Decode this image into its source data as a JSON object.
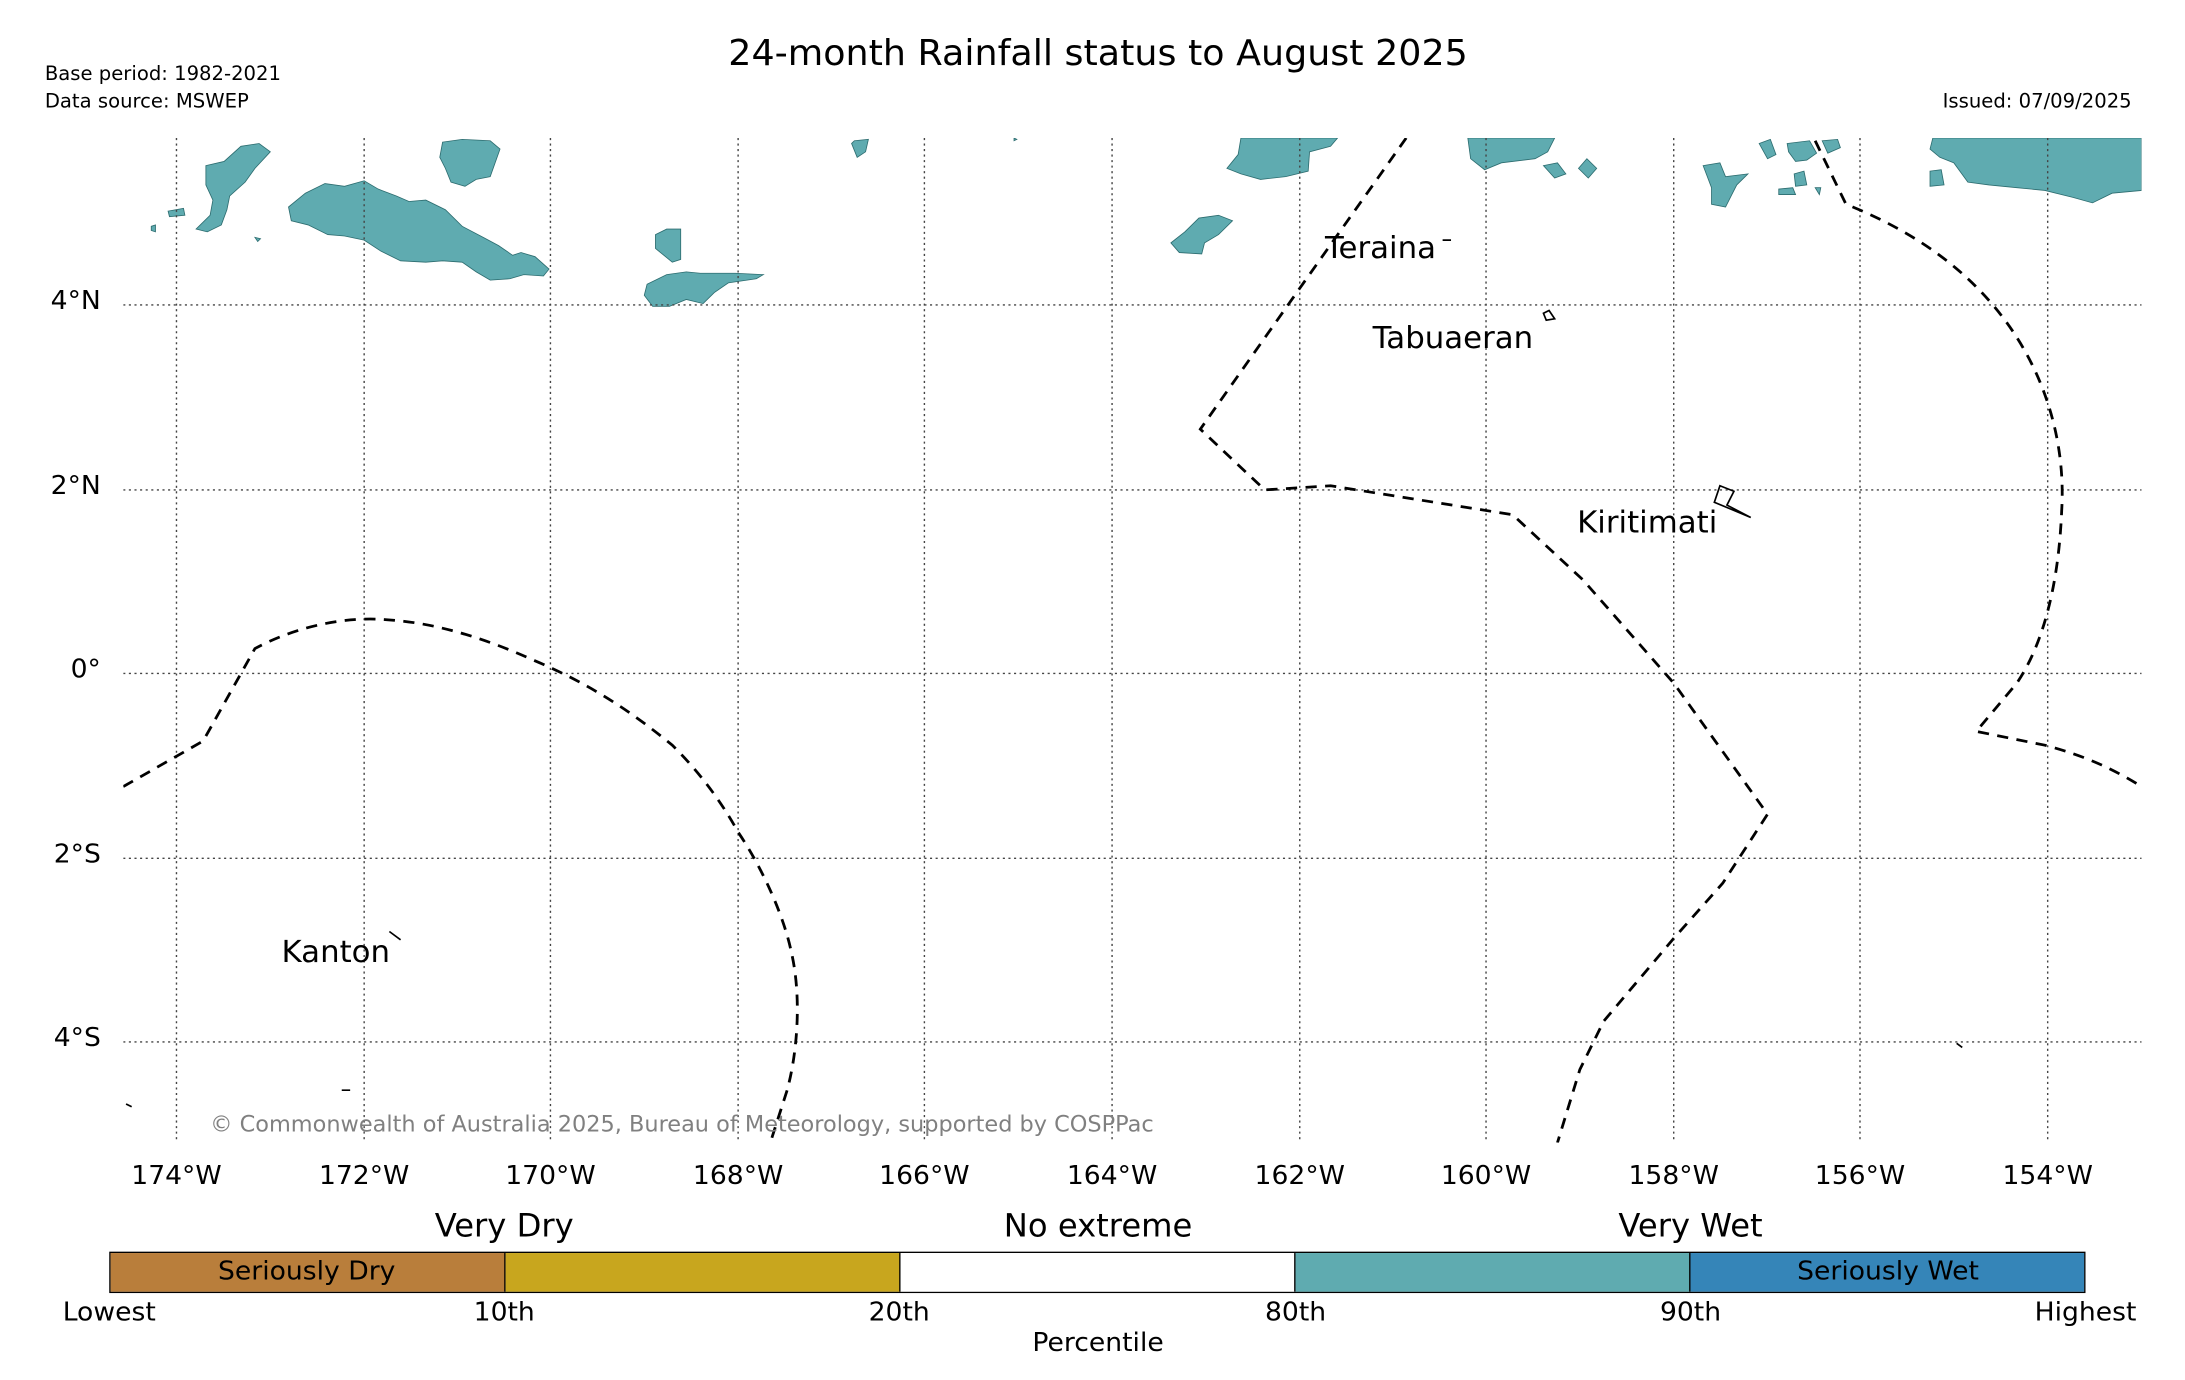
{
  "title": "24-month Rainfall status to August 2025",
  "meta": {
    "base_period": "Base period: 1982-2021",
    "data_source": "Data source: MSWEP",
    "issued": "Issued: 07/09/2025"
  },
  "map": {
    "lon_ticks": [
      "174°W",
      "172°W",
      "170°W",
      "168°W",
      "166°W",
      "164°W",
      "162°W",
      "160°W",
      "158°W",
      "156°W",
      "154°W"
    ],
    "lat_ticks": [
      "4°N",
      "2°N",
      "0°",
      "2°S",
      "4°S"
    ],
    "places": [
      "Teraina",
      "Tabuaeran",
      "Kiritimati",
      "Kanton"
    ],
    "credit": "© Commonwealth of Australia 2025, Bureau of Meteorology, supported by COSPPac",
    "wet_color": "#5fabb0",
    "boundary_style": "dashed"
  },
  "legend": {
    "categories": [
      "Very Dry",
      "No extreme",
      "Very Wet"
    ],
    "segments": [
      {
        "label": "Seriously Dry",
        "color": "#b97e3b"
      },
      {
        "label": "",
        "color": "#c8a61e"
      },
      {
        "label": "",
        "color": "#ffffff"
      },
      {
        "label": "",
        "color": "#5fabb0"
      },
      {
        "label": "Seriously Wet",
        "color": "#3585b8"
      }
    ],
    "percentiles": [
      "Lowest",
      "10th",
      "20th",
      "80th",
      "90th",
      "Highest"
    ],
    "axis_label": "Percentile"
  }
}
